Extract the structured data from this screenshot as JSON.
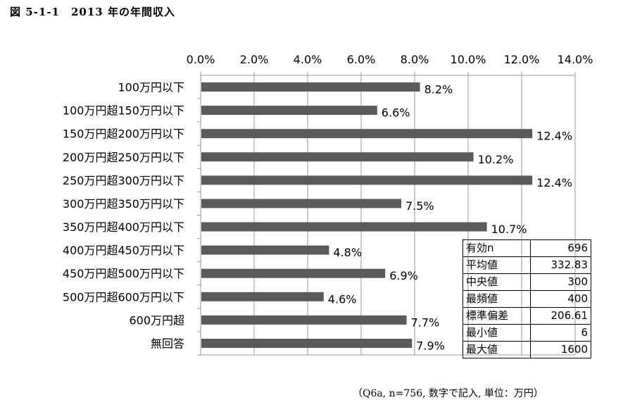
{
  "figure_title": "図 5-1-1　2013 年の年間収入",
  "chart_data": {
    "type": "bar",
    "orientation": "horizontal",
    "categories": [
      "100万円以下",
      "100万円超150万円以下",
      "150万円超200万円以下",
      "200万円超250万円以下",
      "250万円超300万円以下",
      "300万円超350万円以下",
      "350万円超400万円以下",
      "400万円超450万円以下",
      "450万円超500万円以下",
      "500万円超600万円以下",
      "600万円超",
      "無回答"
    ],
    "values": [
      8.2,
      6.6,
      12.4,
      10.2,
      12.4,
      7.5,
      10.7,
      4.8,
      6.9,
      4.6,
      7.7,
      7.9
    ],
    "value_labels": [
      "8.2%",
      "6.6%",
      "12.4%",
      "10.2%",
      "12.4%",
      "7.5%",
      "10.7%",
      "4.8%",
      "6.9%",
      "4.6%",
      "7.7%",
      "7.9%"
    ],
    "xlim": [
      0,
      14
    ],
    "xticks": [
      0,
      2,
      4,
      6,
      8,
      10,
      12,
      14
    ],
    "xtick_labels": [
      "0.0%",
      "2.0%",
      "4.0%",
      "6.0%",
      "8.0%",
      "10.0%",
      "12.0%",
      "14.0%"
    ],
    "x_axis_position": "top",
    "grid": true,
    "bar_color": "#5a5a5a"
  },
  "stats_table": [
    {
      "label": "有効n",
      "value": "696"
    },
    {
      "label": "平均値",
      "value": "332.83"
    },
    {
      "label": "中央値",
      "value": "300"
    },
    {
      "label": "最頻値",
      "value": "400"
    },
    {
      "label": "標準偏差",
      "value": "206.61"
    },
    {
      "label": "最小値",
      "value": "6"
    },
    {
      "label": "最大値",
      "value": "1600"
    }
  ],
  "footnote": "（Q6a, n=756, 数字で記入, 単位：万円）"
}
